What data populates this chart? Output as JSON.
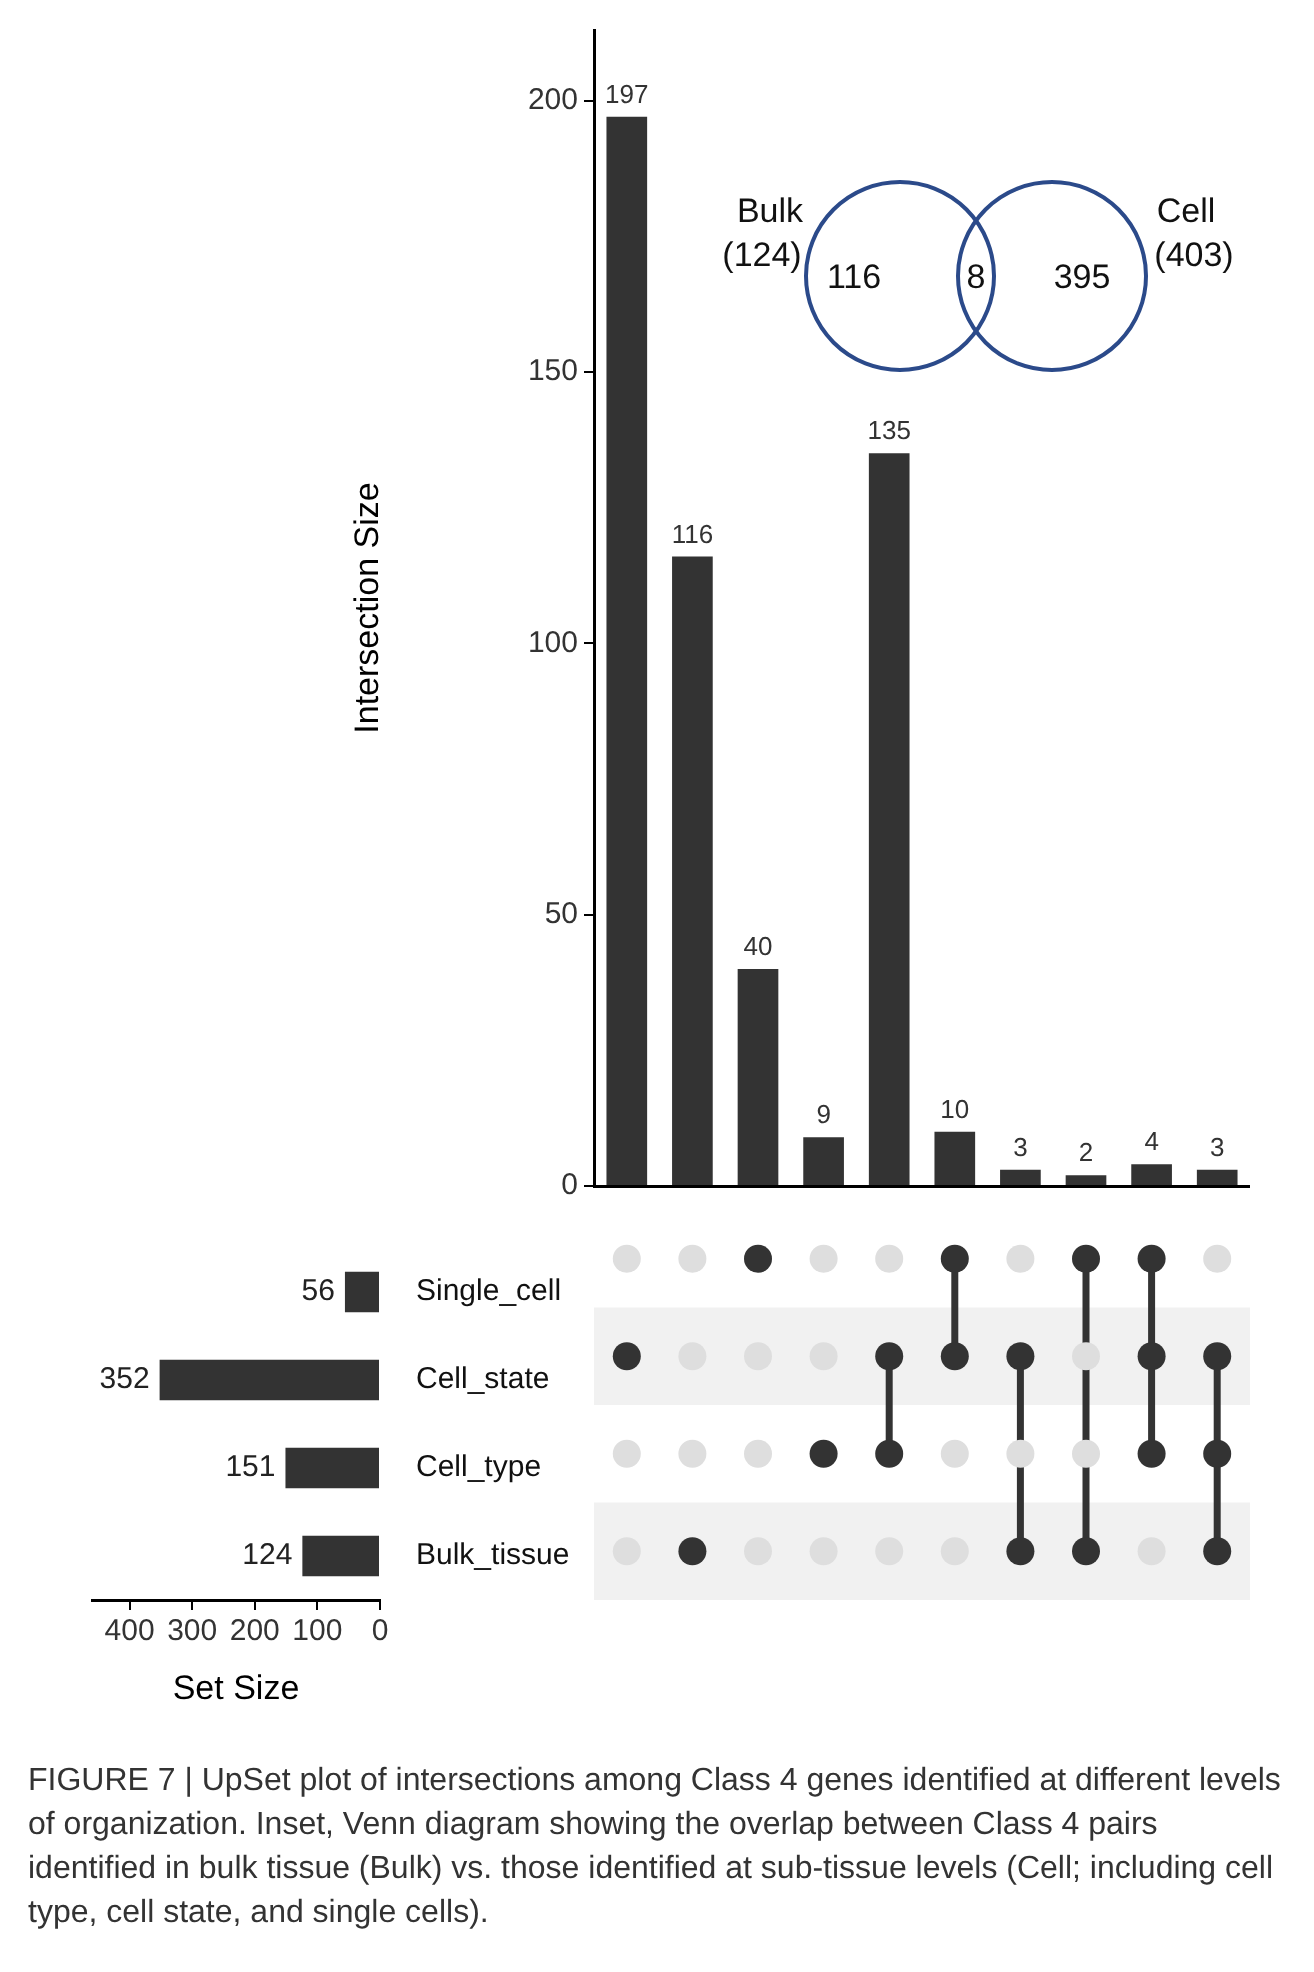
{
  "chart_data": [
    {
      "type": "bar",
      "ylabel": "Intersection Size",
      "categories": [
        null,
        null,
        null,
        null,
        null,
        null,
        null,
        null,
        null,
        null
      ],
      "values": [
        197,
        116,
        40,
        9,
        135,
        10,
        3,
        2,
        4,
        3
      ],
      "color": "#333333",
      "ylim": [
        0,
        213
      ],
      "yticks": [
        0,
        50,
        100,
        150,
        200
      ],
      "data_labels": true,
      "grid": false,
      "tick_labels": "y",
      "annotations": [
        "FIGURE 7 | UpSet plot of intersections among Class 4 genes identified at different levels of organization. Inset, Venn diagram showing the overlap between Class 4 pairs identified in bulk tissue (Bulk) vs. those identified at sub-tissue levels (Cell; including cell type, cell state, and single cells)."
      ]
    },
    {
      "type": "bar",
      "orientation": "horizontal",
      "xlabel": "Set Size",
      "categories": [
        "Single_cell",
        "Cell_state",
        "Cell_type",
        "Bulk_tissue"
      ],
      "values": [
        56,
        352,
        151,
        124
      ],
      "color": "#333333",
      "xlim": [
        460,
        0
      ],
      "xticks": [
        400,
        300,
        200,
        100,
        0
      ],
      "data_labels": true,
      "grid": false
    },
    {
      "type": "other",
      "categories": [
        "Bulk",
        "Cell"
      ],
      "color": "#2b4a8a",
      "annotations": [
        "(124)",
        "(403)",
        "116",
        "8",
        "395"
      ]
    }
  ]
}
